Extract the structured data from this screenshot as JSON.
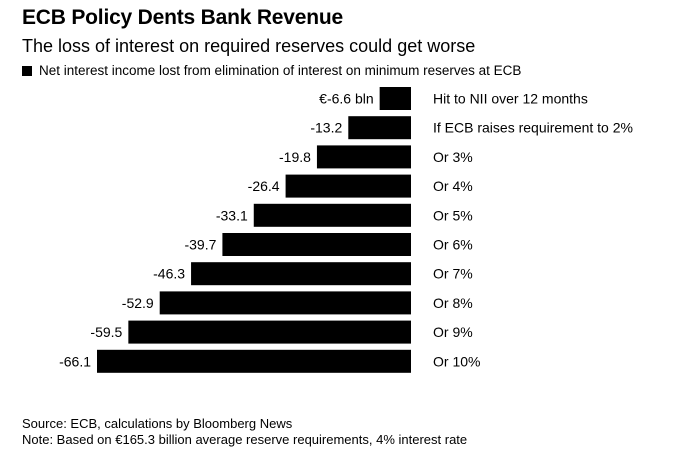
{
  "title": "ECB Policy Dents Bank Revenue",
  "subtitle": "The loss of interest on required reserves could get worse",
  "legend": "Net interest income lost from elimination of interest on minimum reserves at ECB",
  "colors": {
    "bar": "#000000",
    "text": "#000000",
    "background": "#ffffff"
  },
  "chart_data": {
    "type": "bar",
    "orientation": "horizontal",
    "categories": [
      "Hit to NII over 12 months",
      "If ECB raises requirement to 2%",
      "Or 3%",
      "Or 4%",
      "Or 5%",
      "Or 6%",
      "Or 7%",
      "Or 8%",
      "Or 9%",
      "Or 10%"
    ],
    "values": [
      -6.6,
      -13.2,
      -19.8,
      -26.4,
      -33.1,
      -39.7,
      -46.3,
      -52.9,
      -59.5,
      -66.1
    ],
    "value_labels": [
      "€-6.6 bln",
      "-13.2",
      "-19.8",
      "-26.4",
      "-33.1",
      "-39.7",
      "-46.3",
      "-52.9",
      "-59.5",
      "-66.1"
    ],
    "series": [
      {
        "name": "Net interest income lost from elimination of interest on minimum reserves at ECB",
        "values": [
          -6.6,
          -13.2,
          -19.8,
          -26.4,
          -33.1,
          -39.7,
          -46.3,
          -52.9,
          -59.5,
          -66.1
        ]
      }
    ],
    "unit": "€ bln",
    "grid": false,
    "legend_position": "top-left"
  },
  "footer": {
    "source": "Source: ECB, calculations by Bloomberg News",
    "note": "Note: Based on €165.3 billion average reserve requirements, 4% interest rate"
  }
}
